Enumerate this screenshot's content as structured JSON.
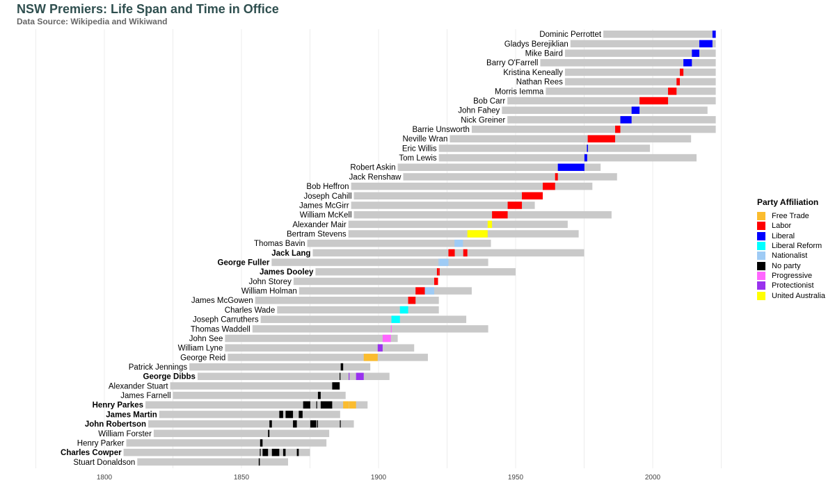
{
  "chart_data": {
    "type": "bar",
    "title": "NSW Premiers: Life Span and Time in Office",
    "subtitle": "Data Source: Wikipedia and Wikiwand",
    "xlabel": "",
    "ylabel": "",
    "xlim": [
      1775,
      2025
    ],
    "x_ticks": [
      1800,
      1850,
      1900,
      1950,
      2000
    ],
    "grid": true,
    "legend_title": "Party Affiliation",
    "legend_position": "right",
    "party_colors": {
      "Free Trade": "#fbbc2e",
      "Labor": "#ff0000",
      "Liberal": "#0000ff",
      "Liberal Reform": "#00ffff",
      "Nationalist": "#9ecbf5",
      "No party": "#000000",
      "Progressive": "#ff66ff",
      "Protectionist": "#9932ee",
      "United Australia": "#ffff00"
    },
    "premiers": [
      {
        "name": "Dominic Perrottet",
        "born": 1982,
        "died": 2023,
        "terms": [
          {
            "start": 2021.8,
            "end": 2023,
            "party": "Liberal"
          }
        ]
      },
      {
        "name": "Gladys Berejiklian",
        "born": 1970,
        "died": 2023,
        "terms": [
          {
            "start": 2017,
            "end": 2021.8,
            "party": "Liberal"
          }
        ]
      },
      {
        "name": "Mike Baird",
        "born": 1968,
        "died": 2023,
        "terms": [
          {
            "start": 2014.3,
            "end": 2017,
            "party": "Liberal"
          }
        ]
      },
      {
        "name": "Barry O'Farrell",
        "born": 1959,
        "died": 2023,
        "terms": [
          {
            "start": 2011.2,
            "end": 2014.3,
            "party": "Liberal"
          }
        ]
      },
      {
        "name": "Kristina Keneally",
        "born": 1968,
        "died": 2023,
        "terms": [
          {
            "start": 2009.9,
            "end": 2011.2,
            "party": "Labor"
          }
        ]
      },
      {
        "name": "Nathan Rees",
        "born": 1968,
        "died": 2023,
        "terms": [
          {
            "start": 2008.7,
            "end": 2009.9,
            "party": "Labor"
          }
        ]
      },
      {
        "name": "Morris Iemma",
        "born": 1961,
        "died": 2023,
        "terms": [
          {
            "start": 2005.6,
            "end": 2008.7,
            "party": "Labor"
          }
        ]
      },
      {
        "name": "Bob Carr",
        "born": 1947,
        "died": 2023,
        "terms": [
          {
            "start": 1995.2,
            "end": 2005.6,
            "party": "Labor"
          }
        ]
      },
      {
        "name": "John Fahey",
        "born": 1945,
        "died": 2020,
        "terms": [
          {
            "start": 1992.3,
            "end": 1995.2,
            "party": "Liberal"
          }
        ]
      },
      {
        "name": "Nick Greiner",
        "born": 1947,
        "died": 2023,
        "terms": [
          {
            "start": 1988.2,
            "end": 1992.3,
            "party": "Liberal"
          }
        ]
      },
      {
        "name": "Barrie Unsworth",
        "born": 1934,
        "died": 2023,
        "terms": [
          {
            "start": 1986.3,
            "end": 1988.2,
            "party": "Labor"
          }
        ]
      },
      {
        "name": "Neville Wran",
        "born": 1926,
        "died": 2014,
        "terms": [
          {
            "start": 1976.3,
            "end": 1986.3,
            "party": "Labor"
          }
        ]
      },
      {
        "name": "Eric Willis",
        "born": 1922,
        "died": 1999,
        "terms": [
          {
            "start": 1976.0,
            "end": 1976.4,
            "party": "Liberal"
          }
        ]
      },
      {
        "name": "Tom Lewis",
        "born": 1922,
        "died": 2016,
        "terms": [
          {
            "start": 1975.1,
            "end": 1976.1,
            "party": "Liberal"
          }
        ]
      },
      {
        "name": "Robert Askin",
        "born": 1907,
        "died": 1981,
        "terms": [
          {
            "start": 1965.4,
            "end": 1975.1,
            "party": "Liberal"
          }
        ]
      },
      {
        "name": "Jack Renshaw",
        "born": 1909,
        "died": 1987,
        "terms": [
          {
            "start": 1964.4,
            "end": 1965.4,
            "party": "Labor"
          }
        ]
      },
      {
        "name": "Bob Heffron",
        "born": 1890,
        "died": 1978,
        "terms": [
          {
            "start": 1959.9,
            "end": 1964.4,
            "party": "Labor"
          }
        ]
      },
      {
        "name": "Joseph Cahill",
        "born": 1891,
        "died": 1959,
        "terms": [
          {
            "start": 1952.3,
            "end": 1959.9,
            "party": "Labor"
          }
        ]
      },
      {
        "name": "James McGirr",
        "born": 1890,
        "died": 1957,
        "terms": [
          {
            "start": 1947.1,
            "end": 1952.3,
            "party": "Labor"
          }
        ]
      },
      {
        "name": "William McKell",
        "born": 1891,
        "died": 1985,
        "terms": [
          {
            "start": 1941.4,
            "end": 1947.1,
            "party": "Labor"
          }
        ]
      },
      {
        "name": "Alexander Mair",
        "born": 1889,
        "died": 1969,
        "terms": [
          {
            "start": 1939.8,
            "end": 1941.4,
            "party": "United Australia"
          }
        ]
      },
      {
        "name": "Bertram Stevens",
        "born": 1889,
        "died": 1973,
        "terms": [
          {
            "start": 1932.4,
            "end": 1939.8,
            "party": "United Australia"
          }
        ]
      },
      {
        "name": "Thomas Bavin",
        "born": 1874,
        "died": 1941,
        "terms": [
          {
            "start": 1927.7,
            "end": 1930.8,
            "party": "Nationalist"
          }
        ]
      },
      {
        "name": "Jack Lang",
        "born": 1876,
        "died": 1975,
        "terms": [
          {
            "start": 1925.5,
            "end": 1927.8,
            "party": "Labor"
          },
          {
            "start": 1930.9,
            "end": 1932.4,
            "party": "Labor"
          }
        ]
      },
      {
        "name": "George Fuller",
        "born": 1861,
        "died": 1940,
        "terms": [
          {
            "start": 1921.9,
            "end": 1921.95,
            "party": "Nationalist"
          },
          {
            "start": 1922.3,
            "end": 1925.5,
            "party": "Nationalist"
          }
        ]
      },
      {
        "name": "James Dooley",
        "born": 1877,
        "died": 1950,
        "terms": [
          {
            "start": 1921.3,
            "end": 1921.9,
            "party": "Labor"
          },
          {
            "start": 1921.95,
            "end": 1922.3,
            "party": "Labor"
          }
        ]
      },
      {
        "name": "John Storey",
        "born": 1869,
        "died": 1921,
        "terms": [
          {
            "start": 1920.3,
            "end": 1921.7,
            "party": "Labor"
          }
        ]
      },
      {
        "name": "William Holman",
        "born": 1871,
        "died": 1934,
        "terms": [
          {
            "start": 1913.5,
            "end": 1916.9,
            "party": "Labor"
          },
          {
            "start": 1916.9,
            "end": 1920.3,
            "party": "Nationalist"
          }
        ]
      },
      {
        "name": "James McGowen",
        "born": 1855,
        "died": 1922,
        "terms": [
          {
            "start": 1910.8,
            "end": 1913.5,
            "party": "Labor"
          }
        ]
      },
      {
        "name": "Charles Wade",
        "born": 1863,
        "died": 1922,
        "terms": [
          {
            "start": 1907.8,
            "end": 1910.8,
            "party": "Liberal Reform"
          }
        ]
      },
      {
        "name": "Joseph Carruthers",
        "born": 1857,
        "died": 1932,
        "terms": [
          {
            "start": 1904.7,
            "end": 1907.8,
            "party": "Liberal Reform"
          }
        ]
      },
      {
        "name": "Thomas Waddell",
        "born": 1854,
        "died": 1940,
        "terms": [
          {
            "start": 1904.5,
            "end": 1904.7,
            "party": "Progressive"
          }
        ]
      },
      {
        "name": "John See",
        "born": 1844,
        "died": 1907,
        "terms": [
          {
            "start": 1901.5,
            "end": 1904.5,
            "party": "Progressive"
          }
        ]
      },
      {
        "name": "William Lyne",
        "born": 1844,
        "died": 1913,
        "terms": [
          {
            "start": 1899.7,
            "end": 1901.5,
            "party": "Protectionist"
          }
        ]
      },
      {
        "name": "George Reid",
        "born": 1845,
        "died": 1918,
        "terms": [
          {
            "start": 1894.6,
            "end": 1899.7,
            "party": "Free Trade"
          }
        ]
      },
      {
        "name": "Patrick Jennings",
        "born": 1831,
        "died": 1897,
        "terms": [
          {
            "start": 1886.2,
            "end": 1887.1,
            "party": "No party"
          }
        ]
      },
      {
        "name": "George Dibbs",
        "born": 1834,
        "died": 1904,
        "terms": [
          {
            "start": 1885.8,
            "end": 1885.9,
            "party": "No party"
          },
          {
            "start": 1889.1,
            "end": 1889.2,
            "party": "Protectionist"
          },
          {
            "start": 1891.8,
            "end": 1894.6,
            "party": "Protectionist"
          }
        ]
      },
      {
        "name": "Alexander Stuart",
        "born": 1824,
        "died": 1886,
        "terms": [
          {
            "start": 1883.1,
            "end": 1885.8,
            "party": "No party"
          }
        ]
      },
      {
        "name": "James Farnell",
        "born": 1825,
        "died": 1888,
        "terms": [
          {
            "start": 1877.9,
            "end": 1878.9,
            "party": "No party"
          }
        ]
      },
      {
        "name": "Henry Parkes",
        "born": 1815,
        "died": 1896,
        "terms": [
          {
            "start": 1872.5,
            "end": 1875.1,
            "party": "No party"
          },
          {
            "start": 1877.3,
            "end": 1877.5,
            "party": "No party"
          },
          {
            "start": 1878.9,
            "end": 1883.1,
            "party": "No party"
          },
          {
            "start": 1887.1,
            "end": 1889.1,
            "party": "Free Trade"
          },
          {
            "start": 1889.2,
            "end": 1891.8,
            "party": "Free Trade"
          }
        ]
      },
      {
        "name": "James Martin",
        "born": 1820,
        "died": 1886,
        "terms": [
          {
            "start": 1863.8,
            "end": 1865.2,
            "party": "No party"
          },
          {
            "start": 1866.1,
            "end": 1868.8,
            "party": "No party"
          },
          {
            "start": 1870.9,
            "end": 1872.3,
            "party": "No party"
          }
        ]
      },
      {
        "name": "John Robertson",
        "born": 1816,
        "died": 1891,
        "terms": [
          {
            "start": 1860.2,
            "end": 1861.1,
            "party": "No party"
          },
          {
            "start": 1868.8,
            "end": 1870.2,
            "party": "No party"
          },
          {
            "start": 1875.1,
            "end": 1877.3,
            "party": "No party"
          },
          {
            "start": 1877.6,
            "end": 1877.9,
            "party": "No party"
          },
          {
            "start": 1885.9,
            "end": 1886.0,
            "party": "No party"
          }
        ]
      },
      {
        "name": "William Forster",
        "born": 1818,
        "died": 1882,
        "terms": [
          {
            "start": 1859.7,
            "end": 1860.2,
            "party": "No party"
          }
        ]
      },
      {
        "name": "Henry Parker",
        "born": 1808,
        "died": 1881,
        "terms": [
          {
            "start": 1856.8,
            "end": 1857.7,
            "party": "No party"
          }
        ]
      },
      {
        "name": "Charles Cowper",
        "born": 1807,
        "died": 1875,
        "terms": [
          {
            "start": 1856.7,
            "end": 1856.8,
            "party": "No party"
          },
          {
            "start": 1857.7,
            "end": 1859.7,
            "party": "No party"
          },
          {
            "start": 1861.1,
            "end": 1863.8,
            "party": "No party"
          },
          {
            "start": 1865.2,
            "end": 1866.1,
            "party": "No party"
          },
          {
            "start": 1870.2,
            "end": 1870.9,
            "party": "No party"
          }
        ]
      },
      {
        "name": "Stuart Donaldson",
        "born": 1812,
        "died": 1867,
        "terms": [
          {
            "start": 1856.3,
            "end": 1856.7,
            "party": "No party"
          }
        ]
      }
    ]
  }
}
